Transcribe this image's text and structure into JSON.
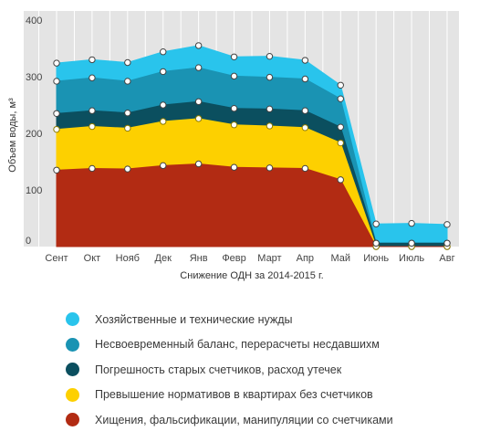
{
  "chart_data": {
    "type": "area",
    "stacked": true,
    "title": "",
    "xlabel": "Снижение ОДН за 2014-2015 г.",
    "ylabel": "Объем воды, м³",
    "ylim": [
      0,
      400
    ],
    "yticks": [
      "0",
      "100",
      "200",
      "300",
      "400"
    ],
    "grid": "vertical",
    "legend_position": "bottom",
    "categories": [
      "Сент",
      "Окт",
      "Нояб",
      "Дек",
      "Янв",
      "Февр",
      "Март",
      "Апр",
      "Май",
      "Июнь",
      "Июль",
      "Авг"
    ],
    "series": [
      {
        "name": "Хищения, фальсификации, манипуляции со счетчиками",
        "color": "#b22b13",
        "values": [
          135,
          138,
          137,
          143,
          146,
          140,
          139,
          138,
          118,
          0,
          0,
          0
        ]
      },
      {
        "name": "Превышение нормативов в квартирах без счетчиков",
        "color": "#fdd000",
        "values": [
          72,
          74,
          72,
          78,
          80,
          75,
          74,
          72,
          65,
          0,
          0,
          0
        ]
      },
      {
        "name": "Погрешность старых счетчиков, расход утечек",
        "color": "#0b4f5f",
        "values": [
          28,
          28,
          27,
          29,
          30,
          29,
          30,
          30,
          28,
          6,
          6,
          6
        ]
      },
      {
        "name": "Несвоевременный баланс, перерасчеты несдавшихм",
        "color": "#1a93b3",
        "values": [
          57,
          58,
          56,
          59,
          60,
          57,
          56,
          56,
          50,
          0,
          0,
          0
        ]
      },
      {
        "name": "Хозяйственные и технические нужды",
        "color": "#29c4ec",
        "values": [
          32,
          32,
          33,
          35,
          39,
          34,
          37,
          33,
          24,
          34,
          35,
          33
        ]
      }
    ]
  }
}
